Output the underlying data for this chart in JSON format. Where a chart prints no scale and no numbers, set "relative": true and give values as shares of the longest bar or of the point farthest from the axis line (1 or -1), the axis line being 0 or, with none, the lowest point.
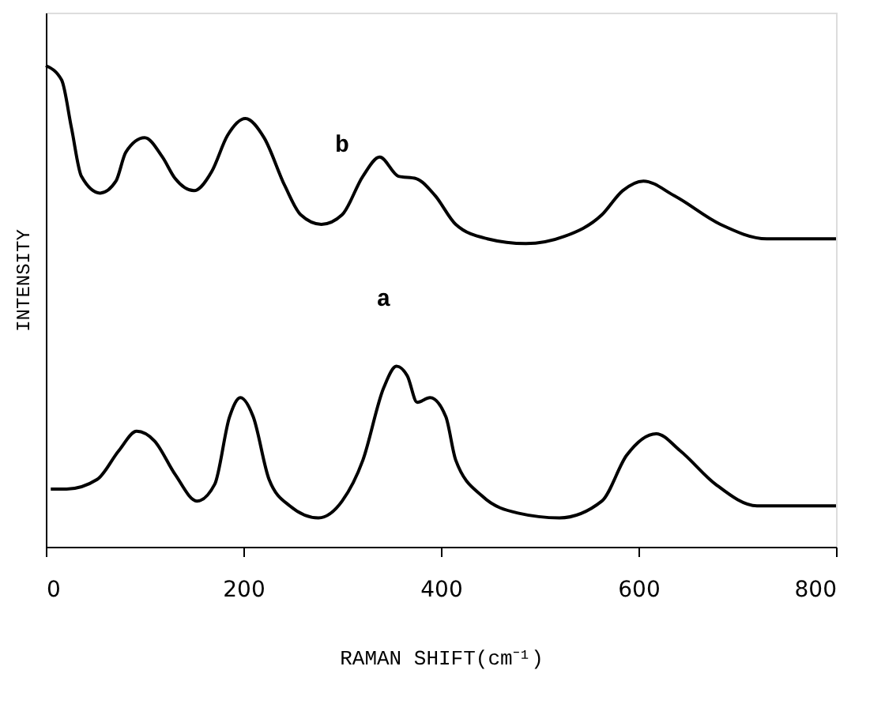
{
  "chart_data": {
    "type": "line",
    "xlabel": "RAMAN SHIFT(cm⁻¹)",
    "ylabel": "INTENSITY",
    "relative": true,
    "xlim": [
      0,
      800
    ],
    "xticks": [
      0,
      200,
      400,
      600,
      800
    ],
    "grid": false,
    "legend": false,
    "marker": "none",
    "line_style": "solid",
    "tick_labels": "x",
    "series": [
      {
        "name": "b",
        "color": "#000000",
        "x": [
          0,
          16,
          26,
          36,
          55,
          71,
          81,
          100,
          118,
          131,
          150,
          168,
          184,
          202,
          221,
          242,
          258,
          279,
          300,
          321,
          338,
          357,
          375,
          394,
          415,
          447,
          486,
          525,
          563,
          584,
          605,
          636,
          683,
          730,
          766,
          800
        ],
        "values": [
          1.0,
          0.97,
          0.87,
          0.77,
          0.735,
          0.76,
          0.82,
          0.85,
          0.81,
          0.765,
          0.74,
          0.78,
          0.855,
          0.89,
          0.85,
          0.75,
          0.69,
          0.67,
          0.69,
          0.77,
          0.81,
          0.77,
          0.765,
          0.73,
          0.67,
          0.64,
          0.63,
          0.645,
          0.69,
          0.74,
          0.76,
          0.73,
          0.67,
          0.64,
          0.64,
          0.64
        ]
      },
      {
        "name": "a",
        "color": "#000000",
        "x": [
          5,
          21,
          52,
          74,
          92,
          110,
          131,
          153,
          171,
          186,
          197,
          210,
          226,
          247,
          276,
          300,
          321,
          342,
          355,
          366,
          376,
          389,
          405,
          415,
          442,
          478,
          520,
          563,
          588,
          618,
          642,
          678,
          720,
          800
        ],
        "values": [
          0.12,
          0.12,
          0.14,
          0.2,
          0.24,
          0.22,
          0.15,
          0.095,
          0.13,
          0.27,
          0.31,
          0.27,
          0.14,
          0.085,
          0.06,
          0.095,
          0.18,
          0.33,
          0.375,
          0.355,
          0.3,
          0.31,
          0.27,
          0.18,
          0.105,
          0.07,
          0.06,
          0.095,
          0.19,
          0.235,
          0.2,
          0.13,
          0.085,
          0.085
        ]
      }
    ]
  }
}
